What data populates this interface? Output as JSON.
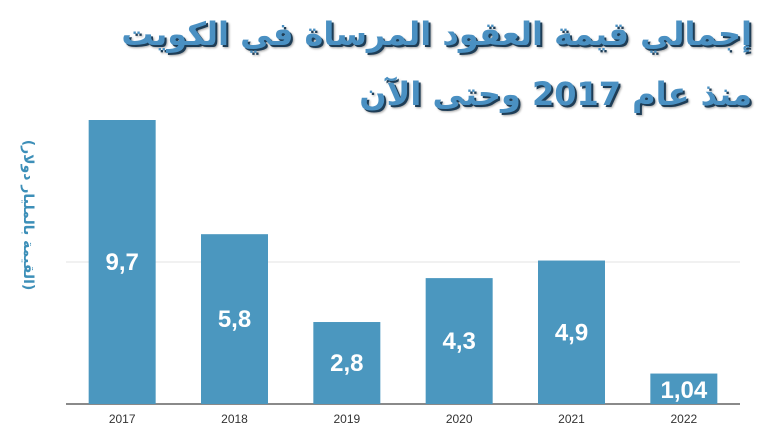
{
  "title": {
    "line1": "إجمالي قيمة العقود المرساة في الكويت",
    "line2": "منذ عام 2017 وحتى الآن"
  },
  "chart_data": {
    "type": "bar",
    "ylabel": "(القيمة بالمليار دولار)",
    "categories": [
      "2017",
      "2018",
      "2019",
      "2020",
      "2021",
      "2022"
    ],
    "values": [
      9.7,
      5.8,
      2.8,
      4.3,
      4.9,
      1.04
    ],
    "data_labels": [
      "9,7",
      "5,8",
      "2,8",
      "4,3",
      "4,9",
      "1,04"
    ],
    "ylim": [
      0,
      9.7
    ],
    "grid": true,
    "colors": {
      "bar": "#4b97bf",
      "title": "#4a90c2",
      "ylabel": "#3d8fb8"
    }
  }
}
